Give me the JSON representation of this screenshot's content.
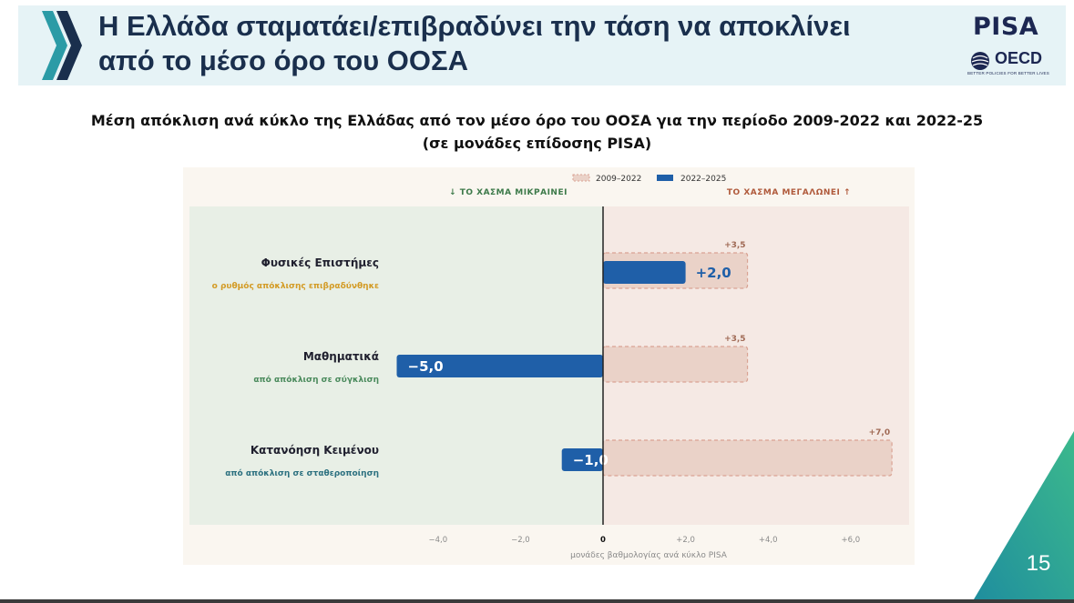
{
  "slide": {
    "title_line1": "Η Ελλάδα σταματάει/επιβραδύνει την τάση να αποκλίνει",
    "title_line2": "από το μέσο όρο του ΟΟΣΑ",
    "subtitle_line1": "Μέση απόκλιση ανά κύκλο της Ελλάδας από τον μέσο όρο του ΟΟΣΑ για την περίοδο 2009-2022 και 2022-25",
    "subtitle_line2": "(σε μονάδες επίδοσης PISA)",
    "page_number": "15"
  },
  "logos": {
    "pisa": "PISA",
    "oecd": "OECD",
    "oecd_tagline": "BETTER POLICIES FOR BETTER LIVES"
  },
  "colors": {
    "header_band": "#e6f3f6",
    "title": "#1a2f4d",
    "bar_2022_2025": "#1f5fa8",
    "bar_2009_2022_fill": "#ead2c8",
    "bar_2009_2022_border": "#d9a393",
    "zone_shrinking": "#e8efe6",
    "zone_widening": "#f5e9e4",
    "chart_bg": "#faf6f0",
    "note_science": "#d39b25",
    "note_maths": "#4a8a5c",
    "note_reading": "#2d7180",
    "corner_teal": "#2aa59b"
  },
  "chart_data": {
    "type": "bar",
    "orientation": "horizontal",
    "zone_left_label": "↓ ΤΟ ΧΑΣΜΑ ΜΙΚΡΑΙΝΕΙ",
    "zone_right_label": "ΤΟ ΧΑΣΜΑ ΜΕΓΑΛΩΝΕΙ ↑",
    "legend_position": "top-right",
    "xlabel": "μονάδες βαθμολογίας ανά κύκλο PISA",
    "xlim": [
      -5.2,
      7.4
    ],
    "xticks": [
      {
        "value": -4,
        "label": "−4,0"
      },
      {
        "value": -2,
        "label": "−2,0"
      },
      {
        "value": 0,
        "label": "0"
      },
      {
        "value": 2,
        "label": "+2,0"
      },
      {
        "value": 4,
        "label": "+4,0"
      },
      {
        "value": 6,
        "label": "+6,0"
      }
    ],
    "categories": [
      {
        "name": "Φυσικές Επιστήμες",
        "note": "ο ρυθμός απόκλισης επιβραδύνθηκε",
        "note_color_key": "note_science"
      },
      {
        "name": "Μαθηματικά",
        "note": "από απόκλιση σε σύγκλιση",
        "note_color_key": "note_maths"
      },
      {
        "name": "Κατανόηση Κειμένου",
        "note": "από απόκλιση σε σταθεροποίηση",
        "note_color_key": "note_reading"
      }
    ],
    "series": [
      {
        "name": "2009–2022",
        "values": [
          3.5,
          3.5,
          7.0
        ],
        "labels": [
          "+3,5",
          "+3,5",
          "+7,0"
        ],
        "style": "dashed-outline"
      },
      {
        "name": "2022–2025",
        "values": [
          2.0,
          -5.0,
          -1.0
        ],
        "labels": [
          "+2,0",
          "−5,0",
          "−1,0"
        ],
        "style": "solid"
      }
    ]
  }
}
